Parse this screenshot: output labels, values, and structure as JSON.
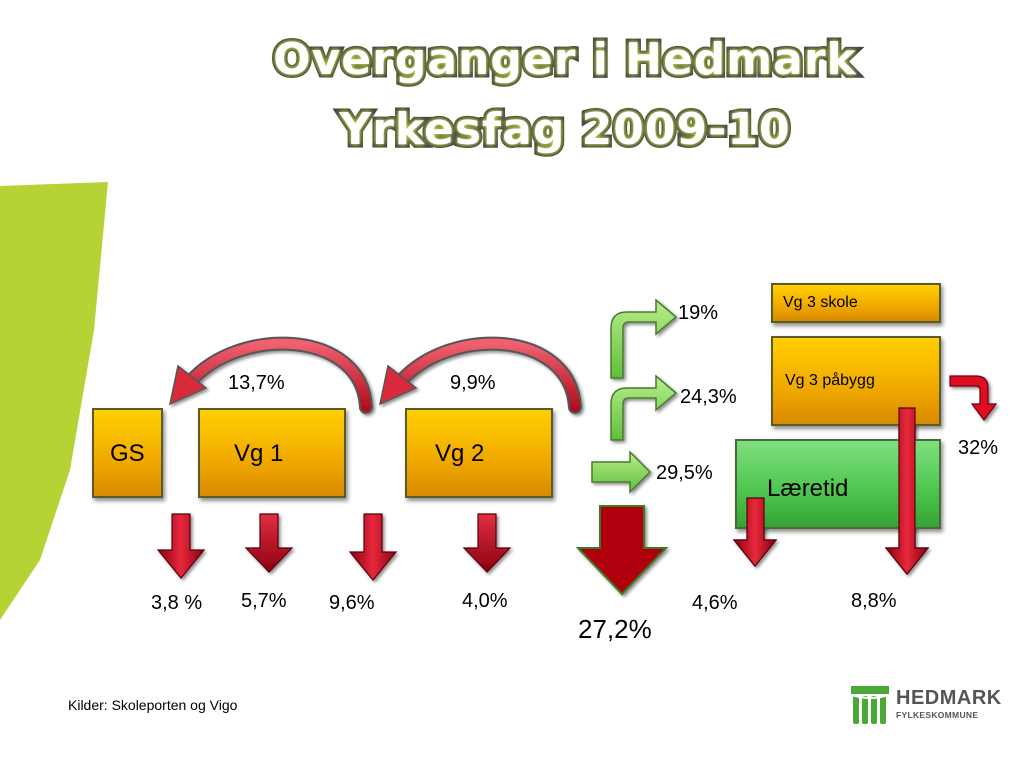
{
  "title": {
    "line1": "Overganger i Hedmark",
    "line2": "Yrkesfag 2009-10"
  },
  "boxes": {
    "gs": "GS",
    "vg1": "Vg 1",
    "vg2": "Vg 2",
    "vg3_skole": "Vg 3 skole",
    "vg3_pabygg": "Vg 3 påbygg",
    "laeretid": "Læretid"
  },
  "percentages": {
    "back_vg1": "13,7%",
    "back_vg2": "9,9%",
    "to_vg3_skole": "19%",
    "to_vg3_pabygg": "24,3%",
    "to_laeretid": "29,5%",
    "pabygg_out": "32%",
    "drop_gs": "3,8 %",
    "drop_vg1_a": "5,7%",
    "drop_vg1_b": "9,6%",
    "drop_vg2": "4,0%",
    "drop_big": "27,2%",
    "drop_laeretid": "4,6%",
    "drop_pabygg": "8,8%"
  },
  "source": "Kilder: Skoleporten og Vigo",
  "logo": {
    "name": "HEDMARK",
    "sub": "FYLKESKOMMUNE"
  },
  "colors": {
    "accent_green": "#b5d334",
    "orange": "#f5b800",
    "green": "#4cc44c",
    "red": "#c0001a"
  }
}
